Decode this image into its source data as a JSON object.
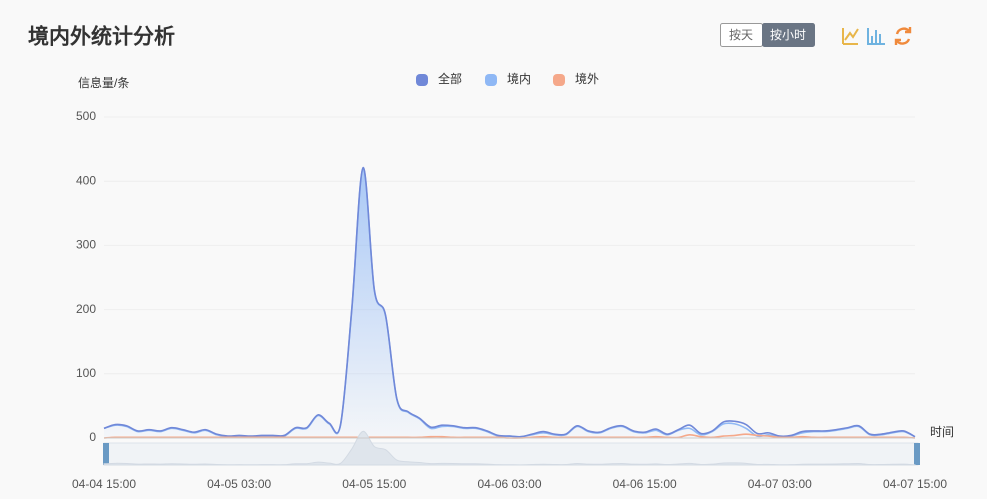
{
  "toolbar": {
    "buttons": [
      "按天",
      "按小时"
    ]
  },
  "chart_data": {
    "type": "line",
    "title": "境内外统计分析",
    "y_label": "信息量/条",
    "x_label": "时间",
    "smooth": true,
    "grid": true,
    "legend": "top",
    "categories": [
      "04-04 15:00",
      null,
      null,
      null,
      null,
      null,
      null,
      null,
      null,
      null,
      null,
      null,
      "04-05 03:00",
      null,
      null,
      null,
      null,
      null,
      null,
      null,
      null,
      null,
      null,
      null,
      "04-05 15:00",
      null,
      null,
      null,
      null,
      null,
      null,
      null,
      null,
      null,
      null,
      null,
      "04-06 03:00",
      null,
      null,
      null,
      null,
      null,
      null,
      null,
      null,
      null,
      null,
      null,
      "04-06 15:00",
      null,
      null,
      null,
      null,
      null,
      null,
      null,
      null,
      null,
      null,
      null,
      "04-07 03:00",
      null,
      null,
      null,
      null,
      null,
      null,
      null,
      null,
      null,
      null,
      null,
      "04-07 15:00"
    ],
    "ylim": [
      0,
      500
    ],
    "yticks": [
      0,
      100,
      200,
      300,
      400,
      500
    ],
    "series": [
      {
        "name": "全部",
        "color": "#7088d8",
        "values": [
          15,
          21,
          19,
          11,
          13,
          11,
          16,
          13,
          9,
          13,
          6,
          3,
          4,
          3,
          4,
          4,
          4,
          16,
          16,
          36,
          23,
          21,
          201,
          421,
          231,
          191,
          61,
          41,
          31,
          17,
          20,
          19,
          16,
          16,
          11,
          4,
          3,
          2,
          6,
          10,
          6,
          6,
          19,
          11,
          9,
          16,
          19,
          11,
          9,
          14,
          6,
          13,
          20,
          7,
          11,
          25,
          26,
          21,
          7,
          8,
          3,
          4,
          10,
          11,
          11,
          13,
          16,
          19,
          6,
          6,
          9,
          11,
          2
        ]
      },
      {
        "name": "境内",
        "color": "#8fb8f5",
        "area": true,
        "values": [
          15,
          20,
          18,
          10,
          12,
          10,
          15,
          12,
          8,
          12,
          5,
          2,
          3,
          2,
          3,
          3,
          3,
          15,
          15,
          35,
          22,
          20,
          200,
          420,
          230,
          190,
          60,
          40,
          30,
          15,
          18,
          18,
          15,
          15,
          10,
          3,
          3,
          2,
          5,
          8,
          5,
          5,
          18,
          10,
          8,
          15,
          18,
          10,
          8,
          12,
          5,
          12,
          15,
          5,
          10,
          22,
          22,
          15,
          3,
          5,
          2,
          3,
          8,
          10,
          10,
          12,
          15,
          18,
          5,
          5,
          8,
          10,
          2
        ]
      },
      {
        "name": "境外",
        "color": "#f5a88a",
        "values": [
          0,
          1,
          1,
          1,
          1,
          1,
          1,
          1,
          1,
          1,
          1,
          1,
          1,
          1,
          1,
          1,
          1,
          1,
          1,
          1,
          1,
          1,
          1,
          1,
          1,
          1,
          1,
          1,
          1,
          2,
          2,
          1,
          1,
          1,
          1,
          1,
          0,
          0,
          1,
          2,
          1,
          1,
          1,
          1,
          1,
          1,
          1,
          1,
          1,
          2,
          1,
          1,
          5,
          2,
          1,
          3,
          4,
          6,
          4,
          3,
          1,
          1,
          2,
          1,
          1,
          1,
          1,
          1,
          1,
          1,
          1,
          1,
          0
        ]
      }
    ]
  }
}
